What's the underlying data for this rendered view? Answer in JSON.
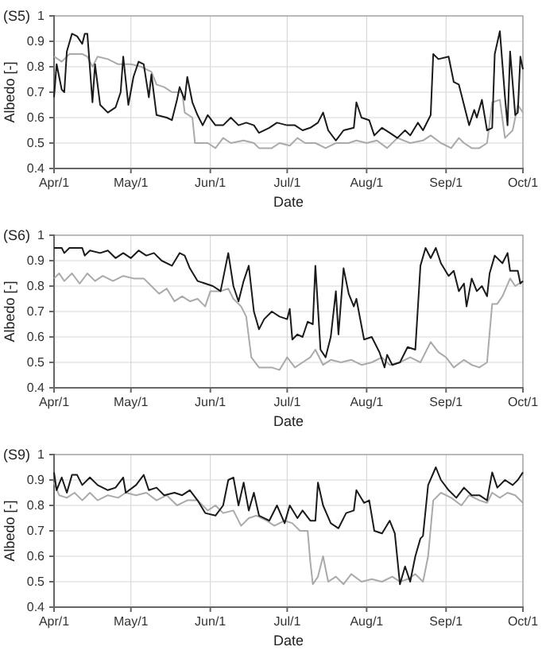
{
  "chart_data": [
    {
      "type": "line",
      "title": "(S5)",
      "xlabel": "Date",
      "ylabel": "Albedo [-]",
      "xlim": [
        "--04-01",
        "--10-01"
      ],
      "xticks": [
        {
          "value": "--04-01",
          "label": "Apr/1"
        },
        {
          "value": "--05-01",
          "label": "May/1"
        },
        {
          "value": "--06-01",
          "label": "Jun/1"
        },
        {
          "value": "--07-01",
          "label": "Jul/1"
        },
        {
          "value": "--08-01",
          "label": "Aug/1"
        },
        {
          "value": "--09-01",
          "label": "Sep/1"
        },
        {
          "value": "--10-01",
          "label": "Oct/1"
        }
      ],
      "ylim": [
        0.4,
        1
      ],
      "yticks": [
        0.4,
        0.5,
        0.6,
        0.7,
        0.8,
        0.9,
        1
      ],
      "grid": true,
      "series": [
        {
          "color": "#aaaaaa",
          "x": [
            "--04-01",
            "--04-04",
            "--04-07",
            "--04-12",
            "--04-14",
            "--04-16",
            "--04-18",
            "--04-22",
            "--04-26",
            "--05-01",
            "--05-05",
            "--05-09",
            "--05-11",
            "--05-14",
            "--05-17",
            "--05-21",
            "--05-22",
            "--05-25",
            "--05-26",
            "--05-31",
            "--06-03",
            "--06-06",
            "--06-09",
            "--06-14",
            "--06-18",
            "--06-20",
            "--06-25",
            "--06-28",
            "--07-02",
            "--07-05",
            "--07-08",
            "--07-12",
            "--07-16",
            "--07-20",
            "--07-25",
            "--07-28",
            "--08-01",
            "--08-05",
            "--08-09",
            "--08-13",
            "--08-18",
            "--08-23",
            "--08-26",
            "--08-30",
            "--09-03",
            "--09-06",
            "--09-08",
            "--09-11",
            "--09-14",
            "--09-17",
            "--09-19",
            "--09-22",
            "--09-24",
            "--09-27",
            "--09-29",
            "--10-01"
          ],
          "values": [
            0.84,
            0.82,
            0.85,
            0.85,
            0.84,
            0.8,
            0.84,
            0.83,
            0.81,
            0.81,
            0.8,
            0.78,
            0.73,
            0.72,
            0.7,
            0.7,
            0.62,
            0.6,
            0.5,
            0.5,
            0.48,
            0.52,
            0.5,
            0.51,
            0.5,
            0.48,
            0.48,
            0.5,
            0.49,
            0.52,
            0.5,
            0.5,
            0.48,
            0.5,
            0.5,
            0.51,
            0.5,
            0.51,
            0.48,
            0.52,
            0.5,
            0.51,
            0.53,
            0.5,
            0.48,
            0.52,
            0.5,
            0.48,
            0.48,
            0.5,
            0.66,
            0.67,
            0.52,
            0.55,
            0.65,
            0.62
          ]
        },
        {
          "color": "#1a1a1a",
          "x": [
            "--04-01",
            "--04-02",
            "--04-04",
            "--04-05",
            "--04-06",
            "--04-08",
            "--04-10",
            "--04-12",
            "--04-13",
            "--04-14",
            "--04-16",
            "--04-17",
            "--04-19",
            "--04-22",
            "--04-25",
            "--04-27",
            "--04-28",
            "--04-30",
            "--05-02",
            "--05-04",
            "--05-06",
            "--05-08",
            "--05-09",
            "--05-11",
            "--05-15",
            "--05-17",
            "--05-19",
            "--05-20",
            "--05-22",
            "--05-23",
            "--05-25",
            "--05-27",
            "--05-29",
            "--05-31",
            "--06-03",
            "--06-06",
            "--06-09",
            "--06-12",
            "--06-15",
            "--06-18",
            "--06-20",
            "--06-24",
            "--06-27",
            "--07-01",
            "--07-04",
            "--07-07",
            "--07-10",
            "--07-13",
            "--07-15",
            "--07-17",
            "--07-20",
            "--07-23",
            "--07-27",
            "--07-28",
            "--07-30",
            "--08-02",
            "--08-04",
            "--08-07",
            "--08-10",
            "--08-13",
            "--08-16",
            "--08-18",
            "--08-21",
            "--08-23",
            "--08-26",
            "--08-27",
            "--08-29",
            "--09-02",
            "--09-04",
            "--09-06",
            "--09-08",
            "--09-10",
            "--09-12",
            "--09-13",
            "--09-15",
            "--09-17",
            "--09-19",
            "--09-20",
            "--09-22",
            "--09-24",
            "--09-25",
            "--09-26",
            "--09-28",
            "--09-29",
            "--09-30",
            "--10-01"
          ],
          "values": [
            0.68,
            0.81,
            0.71,
            0.7,
            0.86,
            0.93,
            0.92,
            0.89,
            0.93,
            0.93,
            0.66,
            0.81,
            0.65,
            0.62,
            0.64,
            0.7,
            0.84,
            0.65,
            0.76,
            0.82,
            0.81,
            0.68,
            0.77,
            0.61,
            0.6,
            0.59,
            0.67,
            0.72,
            0.67,
            0.76,
            0.66,
            0.61,
            0.57,
            0.61,
            0.57,
            0.57,
            0.6,
            0.57,
            0.58,
            0.57,
            0.54,
            0.56,
            0.58,
            0.57,
            0.57,
            0.55,
            0.56,
            0.58,
            0.62,
            0.55,
            0.51,
            0.55,
            0.56,
            0.66,
            0.6,
            0.59,
            0.53,
            0.56,
            0.54,
            0.52,
            0.55,
            0.53,
            0.58,
            0.55,
            0.61,
            0.85,
            0.83,
            0.84,
            0.74,
            0.73,
            0.65,
            0.57,
            0.63,
            0.6,
            0.67,
            0.55,
            0.56,
            0.85,
            0.94,
            0.68,
            0.57,
            0.86,
            0.61,
            0.62,
            0.84,
            0.79
          ]
        }
      ]
    },
    {
      "type": "line",
      "title": "(S6)",
      "xlabel": "Date",
      "ylabel": "Albedo [-]",
      "xlim": [
        "--04-01",
        "--10-01"
      ],
      "xticks": [
        {
          "value": "--04-01",
          "label": "Apr/1"
        },
        {
          "value": "--05-01",
          "label": "May/1"
        },
        {
          "value": "--06-01",
          "label": "Jun/1"
        },
        {
          "value": "--07-01",
          "label": "Jul/1"
        },
        {
          "value": "--08-01",
          "label": "Aug/1"
        },
        {
          "value": "--09-01",
          "label": "Sep/1"
        },
        {
          "value": "--10-01",
          "label": "Oct/1"
        }
      ],
      "ylim": [
        0.4,
        1
      ],
      "yticks": [
        0.4,
        0.5,
        0.6,
        0.7,
        0.8,
        0.9,
        1
      ],
      "grid": true,
      "series": [
        {
          "color": "#aaaaaa",
          "x": [
            "--04-01",
            "--04-03",
            "--04-05",
            "--04-08",
            "--04-11",
            "--04-14",
            "--04-17",
            "--04-20",
            "--04-24",
            "--04-28",
            "--05-02",
            "--05-06",
            "--05-09",
            "--05-12",
            "--05-15",
            "--05-18",
            "--05-21",
            "--05-24",
            "--05-27",
            "--05-30",
            "--06-01",
            "--06-05",
            "--06-08",
            "--06-10",
            "--06-13",
            "--06-15",
            "--06-17",
            "--06-20",
            "--06-25",
            "--06-28",
            "--07-01",
            "--07-04",
            "--07-07",
            "--07-10",
            "--07-12",
            "--07-15",
            "--07-18",
            "--07-22",
            "--07-26",
            "--07-30",
            "--08-03",
            "--08-07",
            "--08-10",
            "--08-14",
            "--08-18",
            "--08-22",
            "--08-26",
            "--08-29",
            "--09-01",
            "--09-04",
            "--09-08",
            "--09-11",
            "--09-14",
            "--09-17",
            "--09-19",
            "--09-21",
            "--09-23",
            "--09-26",
            "--09-28",
            "--10-01"
          ],
          "values": [
            0.83,
            0.85,
            0.82,
            0.85,
            0.81,
            0.85,
            0.82,
            0.84,
            0.82,
            0.84,
            0.83,
            0.83,
            0.8,
            0.77,
            0.79,
            0.74,
            0.76,
            0.74,
            0.75,
            0.72,
            0.78,
            0.78,
            0.79,
            0.75,
            0.72,
            0.68,
            0.52,
            0.48,
            0.48,
            0.47,
            0.52,
            0.48,
            0.5,
            0.52,
            0.55,
            0.49,
            0.51,
            0.5,
            0.51,
            0.49,
            0.5,
            0.52,
            0.49,
            0.5,
            0.52,
            0.5,
            0.58,
            0.54,
            0.52,
            0.48,
            0.51,
            0.49,
            0.48,
            0.5,
            0.73,
            0.73,
            0.76,
            0.83,
            0.8,
            0.82
          ]
        },
        {
          "color": "#1a1a1a",
          "x": [
            "--04-01",
            "--04-04",
            "--04-05",
            "--04-07",
            "--04-12",
            "--04-13",
            "--04-15",
            "--04-19",
            "--04-22",
            "--04-25",
            "--04-28",
            "--05-01",
            "--05-04",
            "--05-07",
            "--05-10",
            "--05-13",
            "--05-17",
            "--05-20",
            "--05-22",
            "--05-24",
            "--05-27",
            "--05-30",
            "--06-02",
            "--06-05",
            "--06-06",
            "--06-08",
            "--06-10",
            "--06-12",
            "--06-14",
            "--06-16",
            "--06-18",
            "--06-20",
            "--06-22",
            "--06-25",
            "--06-28",
            "--07-01",
            "--07-02",
            "--07-03",
            "--07-05",
            "--07-07",
            "--07-09",
            "--07-11",
            "--07-12",
            "--07-14",
            "--07-16",
            "--07-18",
            "--07-20",
            "--07-21",
            "--07-23",
            "--07-25",
            "--07-27",
            "--07-28",
            "--07-31",
            "--08-03",
            "--08-06",
            "--08-08",
            "--08-09",
            "--08-11",
            "--08-14",
            "--08-17",
            "--08-20",
            "--08-22",
            "--08-24",
            "--08-26",
            "--08-28",
            "--08-30",
            "--09-02",
            "--09-04",
            "--09-06",
            "--09-08",
            "--09-09",
            "--09-11",
            "--09-13",
            "--09-15",
            "--09-17",
            "--09-18",
            "--09-20",
            "--09-23",
            "--09-25",
            "--09-26",
            "--09-29",
            "--09-30",
            "--10-01"
          ],
          "values": [
            0.95,
            0.95,
            0.93,
            0.95,
            0.95,
            0.92,
            0.94,
            0.93,
            0.94,
            0.91,
            0.93,
            0.91,
            0.94,
            0.92,
            0.93,
            0.9,
            0.88,
            0.93,
            0.92,
            0.87,
            0.82,
            0.81,
            0.8,
            0.78,
            0.83,
            0.93,
            0.8,
            0.74,
            0.82,
            0.88,
            0.7,
            0.63,
            0.67,
            0.7,
            0.68,
            0.67,
            0.71,
            0.59,
            0.61,
            0.6,
            0.66,
            0.65,
            0.88,
            0.55,
            0.52,
            0.6,
            0.78,
            0.61,
            0.87,
            0.77,
            0.72,
            0.75,
            0.59,
            0.6,
            0.54,
            0.48,
            0.53,
            0.49,
            0.5,
            0.56,
            0.55,
            0.88,
            0.95,
            0.91,
            0.95,
            0.89,
            0.84,
            0.86,
            0.78,
            0.81,
            0.72,
            0.83,
            0.78,
            0.8,
            0.76,
            0.85,
            0.92,
            0.89,
            0.93,
            0.86,
            0.86,
            0.81,
            0.82
          ]
        }
      ]
    },
    {
      "type": "line",
      "title": "(S9)",
      "xlabel": "Date",
      "ylabel": "Albedo [-]",
      "xlim": [
        "--04-01",
        "--10-01"
      ],
      "xticks": [
        {
          "value": "--04-01",
          "label": "Apr/1"
        },
        {
          "value": "--05-01",
          "label": "May/1"
        },
        {
          "value": "--06-01",
          "label": "Jun/1"
        },
        {
          "value": "--07-01",
          "label": "Jul/1"
        },
        {
          "value": "--08-01",
          "label": "Aug/1"
        },
        {
          "value": "--09-01",
          "label": "Sep/1"
        },
        {
          "value": "--10-01",
          "label": "Oct/1"
        }
      ],
      "ylim": [
        0.4,
        1
      ],
      "yticks": [
        0.4,
        0.5,
        0.6,
        0.7,
        0.8,
        0.9,
        1
      ],
      "grid": true,
      "series": [
        {
          "color": "#aaaaaa",
          "x": [
            "--04-01",
            "--04-03",
            "--04-06",
            "--04-09",
            "--04-12",
            "--04-15",
            "--04-18",
            "--04-22",
            "--04-26",
            "--04-29",
            "--05-03",
            "--05-07",
            "--05-11",
            "--05-15",
            "--05-19",
            "--05-23",
            "--05-27",
            "--05-31",
            "--06-03",
            "--06-06",
            "--06-10",
            "--06-13",
            "--06-16",
            "--06-19",
            "--06-23",
            "--06-26",
            "--06-30",
            "--07-03",
            "--07-06",
            "--07-09",
            "--07-10",
            "--07-11",
            "--07-13",
            "--07-15",
            "--07-17",
            "--07-20",
            "--07-23",
            "--07-26",
            "--07-30",
            "--08-03",
            "--08-07",
            "--08-11",
            "--08-14",
            "--08-17",
            "--08-20",
            "--08-23",
            "--08-25",
            "--08-27",
            "--08-30",
            "--09-03",
            "--09-07",
            "--09-10",
            "--09-14",
            "--09-17",
            "--09-19",
            "--09-22",
            "--09-25",
            "--09-28",
            "--10-01"
          ],
          "values": [
            0.89,
            0.84,
            0.83,
            0.85,
            0.82,
            0.85,
            0.82,
            0.84,
            0.83,
            0.85,
            0.84,
            0.85,
            0.82,
            0.84,
            0.8,
            0.82,
            0.82,
            0.78,
            0.8,
            0.77,
            0.78,
            0.72,
            0.75,
            0.76,
            0.74,
            0.72,
            0.74,
            0.73,
            0.7,
            0.7,
            0.58,
            0.49,
            0.52,
            0.6,
            0.5,
            0.52,
            0.49,
            0.53,
            0.5,
            0.51,
            0.5,
            0.52,
            0.5,
            0.51,
            0.53,
            0.5,
            0.6,
            0.82,
            0.85,
            0.83,
            0.8,
            0.84,
            0.82,
            0.81,
            0.85,
            0.83,
            0.85,
            0.84,
            0.81
          ]
        },
        {
          "color": "#1a1a1a",
          "x": [
            "--04-01",
            "--04-02",
            "--04-04",
            "--04-06",
            "--04-08",
            "--04-10",
            "--04-12",
            "--04-15",
            "--04-18",
            "--04-22",
            "--04-25",
            "--04-28",
            "--04-29",
            "--05-03",
            "--05-06",
            "--05-08",
            "--05-11",
            "--05-14",
            "--05-18",
            "--05-21",
            "--05-24",
            "--05-27",
            "--05-30",
            "--06-03",
            "--06-06",
            "--06-08",
            "--06-10",
            "--06-12",
            "--06-14",
            "--06-16",
            "--06-18",
            "--06-20",
            "--06-24",
            "--06-27",
            "--06-30",
            "--07-02",
            "--07-05",
            "--07-07",
            "--07-10",
            "--07-12",
            "--07-13",
            "--07-15",
            "--07-18",
            "--07-21",
            "--07-24",
            "--07-27",
            "--07-28",
            "--07-31",
            "--08-02",
            "--08-04",
            "--08-07",
            "--08-10",
            "--08-12",
            "--08-14",
            "--08-16",
            "--08-18",
            "--08-20",
            "--08-22",
            "--08-23",
            "--08-25",
            "--08-28",
            "--08-30",
            "--09-02",
            "--09-05",
            "--09-08",
            "--09-11",
            "--09-14",
            "--09-17",
            "--09-19",
            "--09-21",
            "--09-24",
            "--09-27",
            "--09-29",
            "--10-01"
          ],
          "values": [
            0.93,
            0.86,
            0.91,
            0.85,
            0.92,
            0.92,
            0.88,
            0.91,
            0.88,
            0.86,
            0.87,
            0.91,
            0.85,
            0.88,
            0.92,
            0.86,
            0.87,
            0.84,
            0.85,
            0.84,
            0.86,
            0.82,
            0.77,
            0.76,
            0.8,
            0.9,
            0.91,
            0.8,
            0.89,
            0.78,
            0.85,
            0.76,
            0.74,
            0.8,
            0.73,
            0.8,
            0.75,
            0.78,
            0.74,
            0.74,
            0.89,
            0.8,
            0.73,
            0.71,
            0.77,
            0.78,
            0.86,
            0.81,
            0.82,
            0.7,
            0.69,
            0.74,
            0.69,
            0.49,
            0.56,
            0.5,
            0.6,
            0.67,
            0.68,
            0.88,
            0.95,
            0.9,
            0.86,
            0.83,
            0.87,
            0.84,
            0.84,
            0.82,
            0.93,
            0.87,
            0.9,
            0.88,
            0.9,
            0.93
          ]
        }
      ]
    }
  ]
}
